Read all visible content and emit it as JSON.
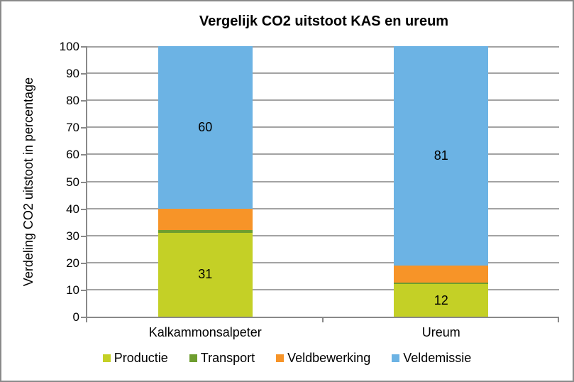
{
  "chart_data": {
    "type": "bar",
    "stacked": true,
    "title": "Vergelijk CO2 uitstoot KAS en ureum",
    "ylabel": "Verdeling CO2 uitstoot in percentage",
    "xlabel": "",
    "categories": [
      "Kalkammonsalpeter",
      "Ureum"
    ],
    "series": [
      {
        "name": "Productie",
        "color": "#c4d026",
        "values": [
          31,
          12
        ],
        "data_labels": [
          "31",
          "12"
        ]
      },
      {
        "name": "Transport",
        "color": "#6e9d2f",
        "values": [
          1,
          0.7
        ],
        "data_labels": [
          "",
          ""
        ]
      },
      {
        "name": "Veldbewerking",
        "color": "#f79428",
        "values": [
          8,
          6.3
        ],
        "data_labels": [
          "",
          ""
        ]
      },
      {
        "name": "Veldemissie",
        "color": "#6cb3e4",
        "values": [
          60,
          81
        ],
        "data_labels": [
          "60",
          "81"
        ]
      }
    ],
    "ylim": [
      0,
      100
    ],
    "yticks": [
      0,
      10,
      20,
      30,
      40,
      50,
      60,
      70,
      80,
      90,
      100
    ],
    "grid": true,
    "legend_position": "bottom",
    "style": {
      "gridline_color": "#a3a3a3",
      "axis_color": "#898989",
      "frame_border_color": "#8a8a8a",
      "label_color": "#000000"
    }
  }
}
